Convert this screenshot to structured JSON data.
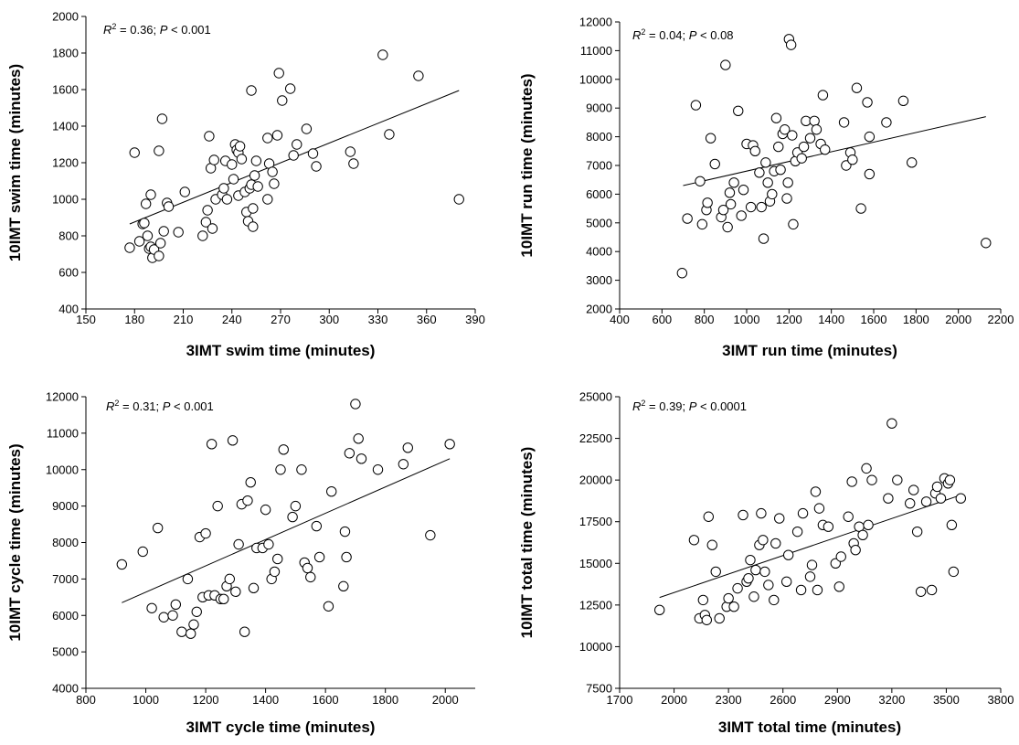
{
  "chart_data": [
    {
      "type": "scatter",
      "xlabel": "3IMT swim time (minutes)",
      "ylabel": "10IMT swim time (minutes)",
      "xlim": [
        150,
        390
      ],
      "ylim": [
        400,
        2000
      ],
      "xticks": [
        150,
        180,
        210,
        240,
        270,
        300,
        330,
        360,
        390
      ],
      "yticks": [
        400,
        600,
        800,
        1000,
        1200,
        1400,
        1600,
        1800,
        2000
      ],
      "annotation": {
        "r2_label": "R",
        "r2_sup": "2",
        "r2_value": " = 0.36; ",
        "p_label": "P",
        "p_value": " < 0.001"
      },
      "trendline": {
        "x": [
          177,
          380
        ],
        "y": [
          865,
          1595
        ]
      },
      "points": {
        "x": [
          177,
          180,
          183,
          185,
          186,
          187,
          188,
          189,
          190,
          190,
          191,
          192,
          195,
          195,
          196,
          197,
          198,
          200,
          201,
          207,
          211,
          222,
          224,
          225,
          226,
          227,
          228,
          229,
          230,
          234,
          235,
          236,
          237,
          240,
          241,
          242,
          243,
          244,
          244,
          245,
          246,
          248,
          249,
          250,
          251,
          252,
          252,
          253,
          253,
          254,
          255,
          256,
          262,
          262,
          263,
          265,
          266,
          268,
          269,
          271,
          276,
          278,
          280,
          286,
          290,
          292,
          313,
          315,
          333,
          337,
          355,
          380
        ],
        "y": [
          735,
          1255,
          770,
          865,
          870,
          975,
          800,
          730,
          740,
          1025,
          680,
          725,
          690,
          1265,
          760,
          1440,
          825,
          980,
          960,
          820,
          1040,
          800,
          875,
          940,
          1345,
          1170,
          840,
          1215,
          1000,
          1025,
          1060,
          1210,
          1000,
          1190,
          1110,
          1300,
          1270,
          1020,
          1255,
          1290,
          1220,
          1040,
          930,
          880,
          1060,
          1595,
          1080,
          950,
          850,
          1130,
          1210,
          1070,
          1000,
          1335,
          1195,
          1150,
          1085,
          1350,
          1690,
          1540,
          1605,
          1240,
          1300,
          1385,
          1250,
          1180,
          1260,
          1195,
          1790,
          1355,
          1675,
          1000
        ]
      }
    },
    {
      "type": "scatter",
      "xlabel": "3IMT run time (minutes)",
      "ylabel": "10IMT run time (minutes)",
      "xlim": [
        400,
        2200
      ],
      "ylim": [
        2000,
        12000
      ],
      "xticks": [
        400,
        600,
        800,
        1000,
        1200,
        1400,
        1600,
        1800,
        2000,
        2200
      ],
      "yticks": [
        2000,
        3000,
        4000,
        5000,
        6000,
        7000,
        8000,
        9000,
        10000,
        11000,
        12000
      ],
      "annotation": {
        "r2_label": "R",
        "r2_sup": "2",
        "r2_value": " = 0.04; ",
        "p_label": "P",
        "p_value": " < 0.08"
      },
      "trendline": {
        "x": [
          700,
          2130
        ],
        "y": [
          6300,
          8700
        ]
      },
      "points": {
        "x": [
          695,
          720,
          760,
          780,
          790,
          810,
          815,
          830,
          850,
          880,
          890,
          900,
          910,
          920,
          925,
          940,
          960,
          975,
          985,
          1000,
          1020,
          1030,
          1040,
          1060,
          1070,
          1080,
          1090,
          1100,
          1110,
          1120,
          1130,
          1140,
          1150,
          1160,
          1170,
          1180,
          1190,
          1195,
          1200,
          1210,
          1215,
          1220,
          1230,
          1240,
          1260,
          1270,
          1280,
          1300,
          1320,
          1330,
          1350,
          1360,
          1370,
          1460,
          1470,
          1490,
          1500,
          1520,
          1540,
          1570,
          1580,
          1580,
          1660,
          1740,
          1780,
          2130
        ],
        "y": [
          3250,
          5150,
          9100,
          6450,
          4950,
          5450,
          5700,
          7950,
          7050,
          5200,
          5450,
          10500,
          4850,
          6050,
          5650,
          6400,
          8900,
          5250,
          6150,
          7750,
          5550,
          7700,
          7500,
          6750,
          5550,
          4450,
          7100,
          6400,
          5750,
          6000,
          6800,
          8650,
          7650,
          6850,
          8100,
          8250,
          5850,
          6400,
          11400,
          11200,
          8050,
          4950,
          7150,
          7450,
          7250,
          7650,
          8550,
          7950,
          8550,
          8250,
          7750,
          9450,
          7550,
          8500,
          7000,
          7450,
          7200,
          9700,
          5500,
          9200,
          8000,
          6700,
          8500,
          9250,
          7100,
          4300
        ]
      }
    },
    {
      "type": "scatter",
      "xlabel": "3IMT cycle time (minutes)",
      "ylabel": "10IMT cycle time (minutes)",
      "xlim": [
        800,
        2100
      ],
      "ylim": [
        4000,
        12000
      ],
      "xticks": [
        800,
        1000,
        1200,
        1400,
        1600,
        1800,
        2000
      ],
      "yticks": [
        4000,
        5000,
        6000,
        7000,
        8000,
        9000,
        10000,
        11000,
        12000
      ],
      "annotation": {
        "r2_label": "R",
        "r2_sup": "2",
        "r2_value": " = 0.31; ",
        "p_label": "P",
        "p_value": " < 0.001"
      },
      "trendline": {
        "x": [
          920,
          2015
        ],
        "y": [
          6350,
          10300
        ]
      },
      "points": {
        "x": [
          920,
          990,
          1020,
          1040,
          1060,
          1090,
          1100,
          1120,
          1140,
          1150,
          1160,
          1170,
          1180,
          1190,
          1200,
          1210,
          1220,
          1230,
          1240,
          1250,
          1260,
          1270,
          1280,
          1290,
          1300,
          1310,
          1320,
          1330,
          1340,
          1350,
          1360,
          1370,
          1390,
          1400,
          1410,
          1420,
          1430,
          1440,
          1450,
          1460,
          1490,
          1500,
          1520,
          1530,
          1540,
          1550,
          1570,
          1580,
          1610,
          1620,
          1660,
          1665,
          1670,
          1680,
          1700,
          1710,
          1720,
          1775,
          1860,
          1875,
          1950,
          2015
        ],
        "y": [
          7400,
          7750,
          6200,
          8400,
          5950,
          6000,
          6300,
          5550,
          7000,
          5500,
          5750,
          6100,
          8150,
          6500,
          8250,
          6550,
          10700,
          6550,
          9000,
          6450,
          6450,
          6800,
          7000,
          10800,
          6650,
          7950,
          9050,
          5550,
          9150,
          9650,
          6750,
          7850,
          7850,
          8900,
          7950,
          7000,
          7200,
          7550,
          10000,
          10550,
          8700,
          9000,
          10000,
          7450,
          7300,
          7050,
          8450,
          7600,
          6250,
          9400,
          6800,
          8300,
          7600,
          10450,
          11800,
          10850,
          10300,
          10000,
          10150,
          10600,
          8200,
          10700
        ]
      }
    },
    {
      "type": "scatter",
      "xlabel": "3IMT total time (minutes)",
      "ylabel": "10IMT total time (minutes)",
      "xlim": [
        1700,
        3800
      ],
      "ylim": [
        7500,
        25000
      ],
      "xticks": [
        1700,
        2000,
        2300,
        2600,
        2900,
        3200,
        3500,
        3800
      ],
      "yticks": [
        7500,
        10000,
        12500,
        15000,
        17500,
        20000,
        22500,
        25000
      ],
      "annotation": {
        "r2_label": "R",
        "r2_sup": "2",
        "r2_value": " = 0.39; ",
        "p_label": "P",
        "p_value": " < 0.0001"
      },
      "trendline": {
        "x": [
          1920,
          3580
        ],
        "y": [
          12950,
          19100
        ]
      },
      "points": {
        "x": [
          1920,
          2110,
          2140,
          2160,
          2170,
          2180,
          2190,
          2210,
          2230,
          2250,
          2290,
          2300,
          2330,
          2350,
          2380,
          2400,
          2410,
          2420,
          2440,
          2450,
          2470,
          2480,
          2490,
          2500,
          2520,
          2550,
          2560,
          2580,
          2620,
          2630,
          2680,
          2700,
          2710,
          2750,
          2760,
          2780,
          2790,
          2800,
          2820,
          2850,
          2890,
          2910,
          2920,
          2960,
          2980,
          2990,
          3000,
          3020,
          3040,
          3060,
          3070,
          3090,
          3180,
          3200,
          3230,
          3300,
          3320,
          3340,
          3360,
          3390,
          3420,
          3440,
          3450,
          3470,
          3490,
          3510,
          3520,
          3530,
          3540,
          3580
        ],
        "y": [
          12200,
          16400,
          11700,
          12800,
          11900,
          11600,
          17800,
          16100,
          14500,
          11700,
          12400,
          12900,
          12400,
          13500,
          17900,
          13900,
          14100,
          15200,
          13000,
          14600,
          16100,
          18000,
          16400,
          14500,
          13700,
          12800,
          16200,
          17700,
          13900,
          15500,
          16900,
          13400,
          18000,
          14200,
          14900,
          19300,
          13400,
          18300,
          17300,
          17200,
          15000,
          13600,
          15400,
          17800,
          19900,
          16200,
          15800,
          17200,
          16700,
          20700,
          17300,
          20000,
          18900,
          23400,
          20000,
          18600,
          19400,
          16900,
          13300,
          18700,
          13400,
          19200,
          19600,
          18900,
          20100,
          19800,
          20000,
          17300,
          14500,
          18900
        ]
      }
    }
  ]
}
